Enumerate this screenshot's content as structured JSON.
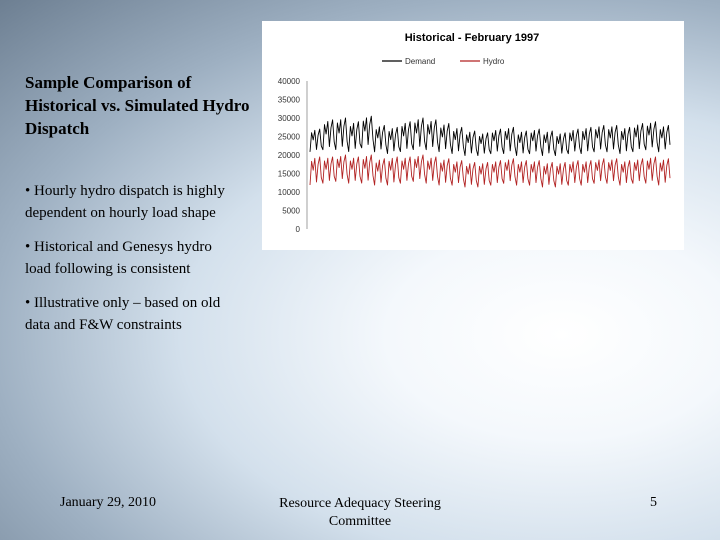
{
  "slide": {
    "title": "Sample Comparison of Historical vs. Simulated Hydro Dispatch",
    "bullets": [
      "• Hourly hydro dispatch is highly dependent on hourly load shape",
      "• Historical and Genesys hydro load following is consistent",
      "• Illustrative only – based on old data and F&W constraints"
    ],
    "footer": {
      "date": "January 29, 2010",
      "center": "Resource Adequacy Steering Committee",
      "page": "5"
    }
  },
  "chart_data": {
    "type": "line",
    "title": "Historical - February 1997",
    "xlabel": "",
    "ylabel": "",
    "ylim": [
      0,
      40000
    ],
    "yticks": [
      "40000",
      "35000",
      "30000",
      "25000",
      "20000",
      "15000",
      "10000",
      "5000",
      "0"
    ],
    "legend": "top-center",
    "days": 28,
    "series": [
      {
        "name": "Demand",
        "color": "#000000",
        "daily_peak": [
          27000,
          29500,
          30000,
          29000,
          30500,
          28000,
          27500,
          29000,
          30000,
          29500,
          28500,
          27500,
          26500,
          26000,
          27000,
          27500,
          26500,
          27000,
          26500,
          26000,
          27000,
          27500,
          28000,
          28000,
          27500,
          28500,
          29000,
          28000
        ],
        "daily_trough": [
          20500,
          21000,
          21000,
          20500,
          21500,
          20500,
          20000,
          20500,
          21000,
          21000,
          20500,
          20000,
          19500,
          19500,
          20000,
          20000,
          19500,
          20000,
          19500,
          19500,
          20000,
          20000,
          20500,
          20500,
          20000,
          20500,
          21000,
          20500
        ]
      },
      {
        "name": "Hydro",
        "color": "#b22222",
        "daily_peak": [
          19500,
          19500,
          20000,
          19500,
          20000,
          19000,
          19500,
          19500,
          20000,
          19500,
          19000,
          18500,
          18000,
          18000,
          18500,
          19000,
          18500,
          18500,
          18000,
          18000,
          18500,
          18500,
          19000,
          19000,
          18500,
          19000,
          19500,
          19000
        ],
        "daily_trough": [
          11500,
          12000,
          12500,
          12000,
          12000,
          11500,
          11500,
          12000,
          12500,
          12000,
          11500,
          11500,
          11000,
          11000,
          11500,
          12000,
          11500,
          11500,
          11000,
          11000,
          11500,
          11500,
          12000,
          12000,
          11500,
          12000,
          12000,
          11500
        ]
      }
    ]
  }
}
